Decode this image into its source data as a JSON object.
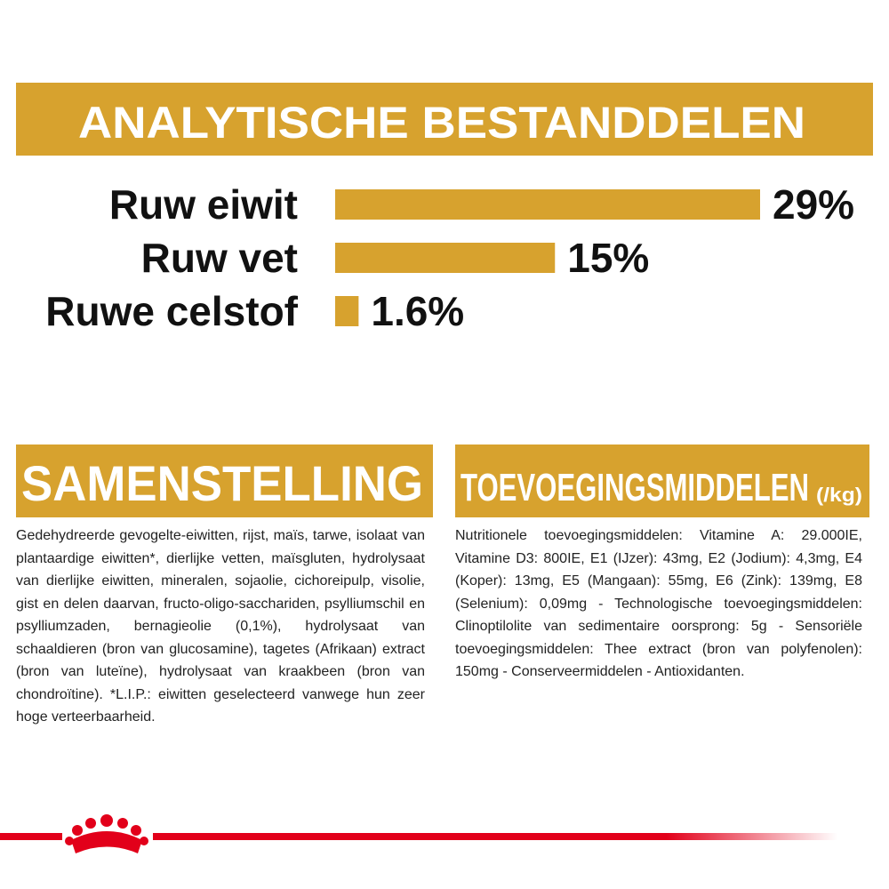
{
  "header": {
    "title": "ANALYTISCHE BESTANDDELEN"
  },
  "chart_data": {
    "type": "bar",
    "orientation": "horizontal",
    "color": "#d7a22e",
    "categories": [
      "Ruw eiwit",
      "Ruw vet",
      "Ruwe celstof"
    ],
    "values": [
      29,
      15,
      1.6
    ],
    "value_labels": [
      "29%",
      "15%",
      "1.6%"
    ]
  },
  "composition": {
    "title": "SAMENSTELLING",
    "text": "Gedehydreerde gevogelte-eiwitten, rijst, maïs, tarwe, isolaat van plantaardige eiwitten*, dierlijke vetten, maïsgluten, hydrolysaat van dierlijke eiwitten, mineralen, sojaolie, cichoreipulp, visolie, gist en delen daarvan, fructo-oligo-sacchariden, psylliumschil en psylliumzaden, bernagieolie (0,1%), hydrolysaat van schaaldieren (bron van glucosamine), tagetes (Afrikaan) extract (bron van luteïne), hydrolysaat van kraakbeen (bron van chondroïtine). *L.I.P.: eiwitten geselecteerd vanwege hun zeer hoge verteerbaarheid."
  },
  "additives": {
    "title": "TOEVOEGINGSMIDDELEN",
    "unit": "(/kg)",
    "text": "Nutritionele toevoegingsmiddelen: Vitamine A: 29.000IE, Vitamine D3: 800IE, E1 (IJzer): 43mg, E2 (Jodium): 4,3mg, E4 (Koper): 13mg, E5 (Mangaan): 55mg, E6 (Zink): 139mg, E8 (Selenium): 0,09mg - Technologische toevoegingsmiddelen: Clinoptilolite van sedimentaire oorsprong: 5g - Sensoriële toevoegingsmiddelen: Thee extract (bron van polyfenolen): 150mg - Conserveermiddelen - Antioxidanten."
  }
}
